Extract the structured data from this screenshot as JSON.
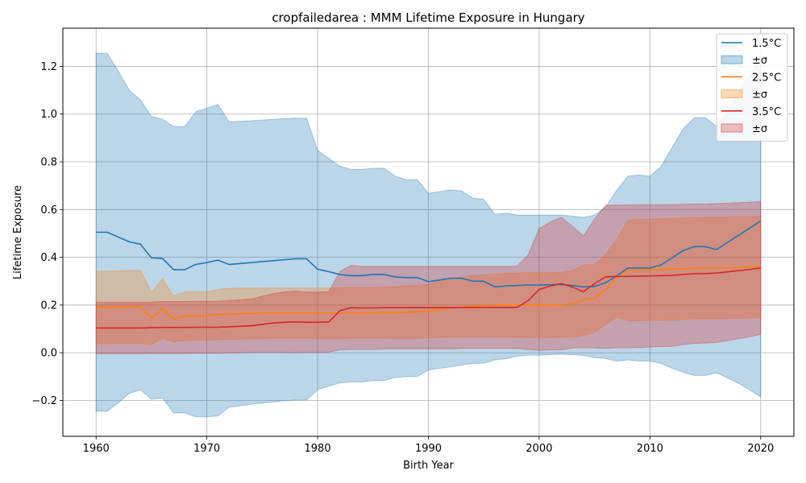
{
  "chart_data": {
    "type": "line",
    "title": "cropfailedarea : MMM Lifetime Exposure in Hungary",
    "xlabel": "Birth Year",
    "ylabel": "Lifetime Exposure",
    "xlim": [
      1957,
      2023
    ],
    "ylim": [
      -0.35,
      1.36
    ],
    "xticks": [
      1960,
      1970,
      1980,
      1990,
      2000,
      2010,
      2020
    ],
    "yticks": [
      -0.2,
      0.0,
      0.2,
      0.4,
      0.6,
      0.8,
      1.0,
      1.2
    ],
    "ytick_labels": [
      "−0.2",
      "0.0",
      "0.2",
      "0.4",
      "0.6",
      "0.8",
      "1.0",
      "1.2"
    ],
    "grid": true,
    "legend_position": "top-right",
    "x": [
      1960,
      1961,
      1962,
      1963,
      1964,
      1965,
      1966,
      1967,
      1968,
      1969,
      1970,
      1971,
      1972,
      1973,
      1974,
      1975,
      1976,
      1977,
      1978,
      1979,
      1980,
      1981,
      1982,
      1983,
      1984,
      1985,
      1986,
      1987,
      1988,
      1989,
      1990,
      1991,
      1992,
      1993,
      1994,
      1995,
      1996,
      1997,
      1998,
      1999,
      2000,
      2001,
      2002,
      2003,
      2004,
      2005,
      2006,
      2007,
      2008,
      2009,
      2010,
      2011,
      2012,
      2013,
      2014,
      2015,
      2016,
      2017,
      2018,
      2019,
      2020
    ],
    "series": [
      {
        "name": "1.5°C",
        "band_name": "±σ",
        "color": "#1f77b4",
        "band_color": "#1f77b4",
        "band_opacity": 0.3,
        "values": [
          0.505,
          0.505,
          0.485,
          0.465,
          0.455,
          0.398,
          0.395,
          0.348,
          0.348,
          0.37,
          0.378,
          0.388,
          0.37,
          0.374,
          0.378,
          0.382,
          0.386,
          0.39,
          0.394,
          0.394,
          0.35,
          0.34,
          0.328,
          0.323,
          0.323,
          0.328,
          0.328,
          0.318,
          0.315,
          0.315,
          0.298,
          0.305,
          0.312,
          0.312,
          0.3,
          0.3,
          0.276,
          0.28,
          0.282,
          0.284,
          0.284,
          0.285,
          0.286,
          0.282,
          0.276,
          0.278,
          0.293,
          0.322,
          0.355,
          0.355,
          0.355,
          0.368,
          0.398,
          0.428,
          0.445,
          0.445,
          0.432,
          0.462,
          0.492,
          0.522,
          0.552
        ],
        "upper": [
          1.255,
          1.255,
          1.18,
          1.1,
          1.06,
          0.99,
          0.978,
          0.948,
          0.948,
          1.01,
          1.025,
          1.04,
          0.968,
          0.97,
          0.972,
          0.975,
          0.978,
          0.981,
          0.983,
          0.983,
          0.848,
          0.815,
          0.782,
          0.768,
          0.768,
          0.773,
          0.773,
          0.74,
          0.725,
          0.725,
          0.668,
          0.675,
          0.683,
          0.678,
          0.648,
          0.643,
          0.58,
          0.585,
          0.577,
          0.577,
          0.577,
          0.577,
          0.577,
          0.573,
          0.567,
          0.577,
          0.61,
          0.68,
          0.74,
          0.745,
          0.74,
          0.78,
          0.86,
          0.938,
          0.985,
          0.985,
          0.948,
          1.01,
          1.09,
          1.165,
          1.24
        ],
        "lower": [
          -0.245,
          -0.245,
          -0.21,
          -0.17,
          -0.155,
          -0.195,
          -0.19,
          -0.252,
          -0.252,
          -0.268,
          -0.268,
          -0.265,
          -0.228,
          -0.222,
          -0.216,
          -0.211,
          -0.206,
          -0.201,
          -0.198,
          -0.198,
          -0.155,
          -0.14,
          -0.126,
          -0.122,
          -0.122,
          -0.117,
          -0.117,
          -0.104,
          -0.1,
          -0.1,
          -0.072,
          -0.065,
          -0.059,
          -0.051,
          -0.045,
          -0.043,
          -0.03,
          -0.025,
          -0.015,
          -0.01,
          -0.01,
          -0.008,
          -0.006,
          -0.008,
          -0.011,
          -0.02,
          -0.024,
          -0.035,
          -0.03,
          -0.035,
          -0.035,
          -0.044,
          -0.065,
          -0.082,
          -0.095,
          -0.095,
          -0.084,
          -0.105,
          -0.128,
          -0.155,
          -0.185
        ]
      },
      {
        "name": "2.5°C",
        "band_name": "±σ",
        "color": "#ff7f0e",
        "band_color": "#ff7f0e",
        "band_opacity": 0.3,
        "values": [
          0.19,
          0.19,
          0.191,
          0.192,
          0.192,
          0.145,
          0.185,
          0.142,
          0.153,
          0.154,
          0.154,
          0.16,
          0.163,
          0.164,
          0.165,
          0.166,
          0.167,
          0.167,
          0.167,
          0.167,
          0.166,
          0.166,
          0.166,
          0.167,
          0.167,
          0.168,
          0.168,
          0.168,
          0.17,
          0.171,
          0.175,
          0.182,
          0.188,
          0.192,
          0.195,
          0.197,
          0.198,
          0.199,
          0.2,
          0.2,
          0.2,
          0.2,
          0.201,
          0.205,
          0.22,
          0.228,
          0.265,
          0.312,
          0.345,
          0.347,
          0.348,
          0.349,
          0.35,
          0.352,
          0.354,
          0.355,
          0.355,
          0.356,
          0.357,
          0.358,
          0.36
        ],
        "upper": [
          0.342,
          0.342,
          0.343,
          0.344,
          0.345,
          0.255,
          0.31,
          0.238,
          0.255,
          0.256,
          0.256,
          0.265,
          0.27,
          0.271,
          0.271,
          0.272,
          0.272,
          0.272,
          0.272,
          0.272,
          0.272,
          0.272,
          0.272,
          0.273,
          0.273,
          0.274,
          0.275,
          0.276,
          0.28,
          0.282,
          0.287,
          0.3,
          0.31,
          0.318,
          0.323,
          0.327,
          0.33,
          0.332,
          0.335,
          0.336,
          0.336,
          0.336,
          0.337,
          0.343,
          0.368,
          0.37,
          0.412,
          0.475,
          0.555,
          0.56,
          0.56,
          0.562,
          0.563,
          0.565,
          0.566,
          0.567,
          0.568,
          0.569,
          0.57,
          0.571,
          0.572
        ],
        "lower": [
          0.038,
          0.038,
          0.039,
          0.04,
          0.039,
          0.035,
          0.06,
          0.046,
          0.051,
          0.052,
          0.052,
          0.055,
          0.056,
          0.057,
          0.058,
          0.06,
          0.062,
          0.062,
          0.062,
          0.062,
          0.06,
          0.06,
          0.06,
          0.061,
          0.061,
          0.062,
          0.061,
          0.06,
          0.06,
          0.06,
          0.063,
          0.064,
          0.066,
          0.066,
          0.067,
          0.067,
          0.066,
          0.066,
          0.065,
          0.064,
          0.064,
          0.064,
          0.065,
          0.067,
          0.072,
          0.086,
          0.118,
          0.149,
          0.135,
          0.134,
          0.136,
          0.136,
          0.137,
          0.139,
          0.142,
          0.143,
          0.142,
          0.143,
          0.144,
          0.145,
          0.148
        ]
      },
      {
        "name": "3.5°C",
        "band_name": "±σ",
        "color": "#d62728",
        "band_color": "#d62728",
        "band_opacity": 0.3,
        "values": [
          0.104,
          0.104,
          0.104,
          0.104,
          0.104,
          0.105,
          0.106,
          0.106,
          0.106,
          0.107,
          0.107,
          0.107,
          0.109,
          0.111,
          0.113,
          0.119,
          0.125,
          0.128,
          0.129,
          0.128,
          0.128,
          0.129,
          0.176,
          0.189,
          0.188,
          0.188,
          0.189,
          0.189,
          0.189,
          0.189,
          0.189,
          0.189,
          0.189,
          0.19,
          0.19,
          0.19,
          0.19,
          0.19,
          0.19,
          0.218,
          0.265,
          0.28,
          0.29,
          0.275,
          0.256,
          0.29,
          0.318,
          0.32,
          0.32,
          0.321,
          0.322,
          0.323,
          0.324,
          0.328,
          0.331,
          0.332,
          0.334,
          0.339,
          0.344,
          0.349,
          0.355
        ],
        "upper": [
          0.212,
          0.212,
          0.212,
          0.212,
          0.212,
          0.213,
          0.215,
          0.215,
          0.215,
          0.216,
          0.216,
          0.216,
          0.219,
          0.222,
          0.225,
          0.237,
          0.248,
          0.255,
          0.258,
          0.254,
          0.254,
          0.256,
          0.34,
          0.366,
          0.362,
          0.362,
          0.362,
          0.362,
          0.362,
          0.362,
          0.362,
          0.362,
          0.362,
          0.362,
          0.362,
          0.362,
          0.362,
          0.362,
          0.362,
          0.41,
          0.52,
          0.548,
          0.568,
          0.53,
          0.49,
          0.56,
          0.618,
          0.619,
          0.619,
          0.62,
          0.62,
          0.62,
          0.621,
          0.622,
          0.623,
          0.623,
          0.625,
          0.627,
          0.629,
          0.631,
          0.633
        ],
        "lower": [
          -0.004,
          -0.004,
          -0.004,
          -0.004,
          -0.004,
          -0.003,
          -0.003,
          -0.003,
          -0.003,
          -0.002,
          -0.002,
          -0.002,
          -0.001,
          0.0,
          0.001,
          0.001,
          0.002,
          0.001,
          0.0,
          0.002,
          0.002,
          0.002,
          0.012,
          0.014,
          0.014,
          0.014,
          0.016,
          0.016,
          0.016,
          0.016,
          0.016,
          0.016,
          0.016,
          0.018,
          0.018,
          0.018,
          0.018,
          0.018,
          0.018,
          0.014,
          0.01,
          0.012,
          0.012,
          0.02,
          0.022,
          0.02,
          0.018,
          0.021,
          0.021,
          0.022,
          0.024,
          0.026,
          0.027,
          0.034,
          0.039,
          0.041,
          0.043,
          0.051,
          0.059,
          0.067,
          0.077
        ]
      }
    ]
  }
}
